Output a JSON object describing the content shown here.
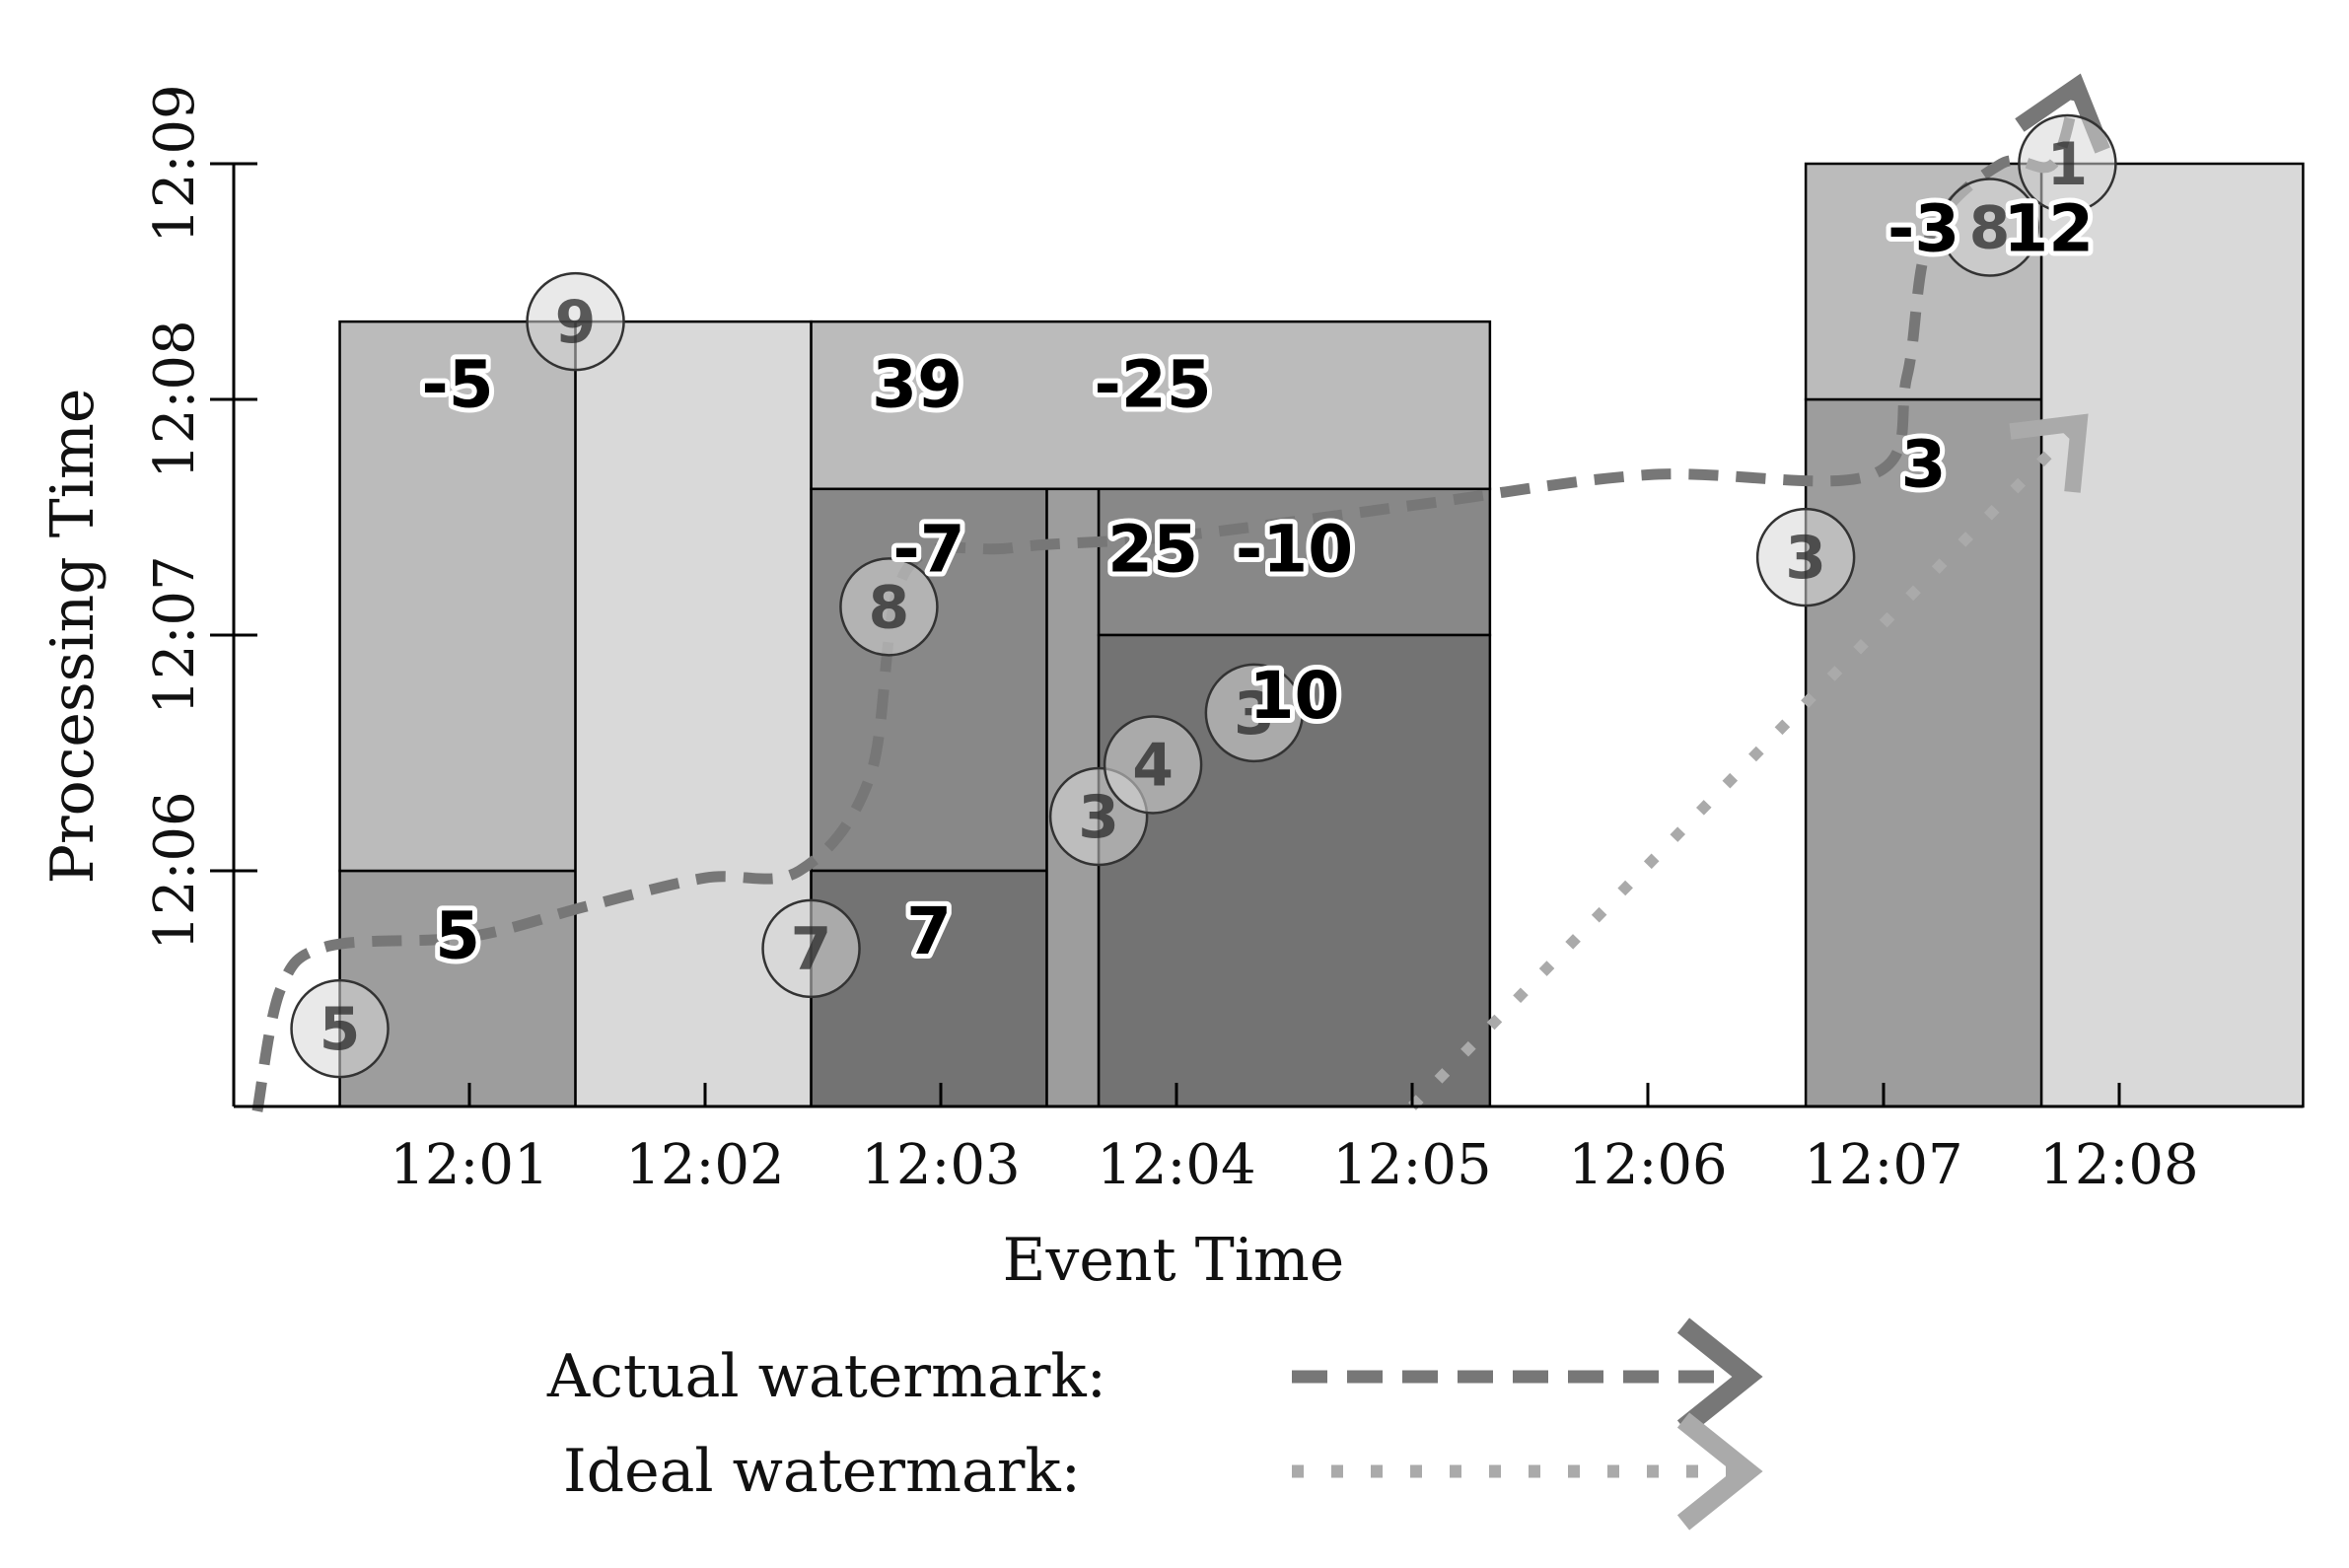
{
  "chart_data": {
    "type": "diagram-chart",
    "xlabel": "Event Time",
    "ylabel": "Processing Time",
    "x_ticks": [
      "12:01",
      "12:02",
      "12:03",
      "12:04",
      "12:05",
      "12:06",
      "12:07",
      "12:08"
    ],
    "y_ticks": [
      "12:06",
      "12:07",
      "12:08",
      "12:09"
    ],
    "xlim_minutes": [
      0,
      8.78
    ],
    "ylim_minutes": [
      5,
      9
    ],
    "colors": {
      "pane_light": "#d9d9d9",
      "pane_mid": "#bbbbbb",
      "pane_gray": "#9d9d9d",
      "pane_dark": "#888888",
      "pane_darkest": "#737373",
      "actual_watermark": "#777777",
      "ideal_watermark": "#aaaaaa"
    },
    "panes": [
      {
        "x0": 0.45,
        "x1": 1.45,
        "y0": 5,
        "y1": 6,
        "shade": "pane_gray"
      },
      {
        "x0": 0.45,
        "x1": 1.45,
        "y0": 6,
        "y1": 8.33,
        "shade": "pane_mid"
      },
      {
        "x0": 1.45,
        "x1": 2.45,
        "y0": 5,
        "y1": 8.33,
        "shade": "pane_light"
      },
      {
        "x0": 2.45,
        "x1": 5.33,
        "y0": 7.62,
        "y1": 8.33,
        "shade": "pane_mid"
      },
      {
        "x0": 2.45,
        "x1": 3.45,
        "y0": 6,
        "y1": 7.62,
        "shade": "pane_dark"
      },
      {
        "x0": 2.45,
        "x1": 3.45,
        "y0": 5,
        "y1": 6,
        "shade": "pane_darkest"
      },
      {
        "x0": 3.45,
        "x1": 3.67,
        "y0": 5,
        "y1": 7.62,
        "shade": "pane_gray"
      },
      {
        "x0": 3.67,
        "x1": 5.33,
        "y0": 7,
        "y1": 7.62,
        "shade": "pane_dark"
      },
      {
        "x0": 3.67,
        "x1": 5.33,
        "y0": 5,
        "y1": 7,
        "shade": "pane_darkest"
      },
      {
        "x0": 6.67,
        "x1": 7.67,
        "y0": 5,
        "y1": 8,
        "shade": "pane_gray"
      },
      {
        "x0": 6.67,
        "x1": 7.67,
        "y0": 8,
        "y1": 9,
        "shade": "pane_mid"
      },
      {
        "x0": 7.67,
        "x1": 8.78,
        "y0": 5,
        "y1": 9,
        "shade": "pane_light"
      }
    ],
    "events": [
      {
        "label": "5",
        "x": 0.45,
        "y": 5.33
      },
      {
        "label": "9",
        "x": 1.45,
        "y": 8.33
      },
      {
        "label": "7",
        "x": 2.45,
        "y": 5.67
      },
      {
        "label": "8",
        "x": 2.78,
        "y": 7.12
      },
      {
        "label": "3",
        "x": 3.67,
        "y": 6.23
      },
      {
        "label": "4",
        "x": 3.9,
        "y": 6.45
      },
      {
        "label": "3",
        "x": 4.33,
        "y": 6.67
      },
      {
        "label": "3",
        "x": 6.67,
        "y": 7.33
      },
      {
        "label": "8",
        "x": 7.45,
        "y": 8.73
      },
      {
        "label": "1",
        "x": 7.78,
        "y": 9.0
      }
    ],
    "pane_results": [
      {
        "label": "5",
        "x": 0.95,
        "y": 5.73
      },
      {
        "label": "-5",
        "x": 0.95,
        "y": 8.07
      },
      {
        "label": "7",
        "x": 2.95,
        "y": 5.75
      },
      {
        "label": "-7",
        "x": 2.95,
        "y": 7.37
      },
      {
        "label": "39",
        "x": 2.9,
        "y": 8.07
      },
      {
        "label": "-25",
        "x": 3.9,
        "y": 8.07
      },
      {
        "label": "25",
        "x": 3.9,
        "y": 7.37
      },
      {
        "label": "-10",
        "x": 4.5,
        "y": 7.37
      },
      {
        "label": "10",
        "x": 4.5,
        "y": 6.75
      },
      {
        "label": "3",
        "x": 7.17,
        "y": 7.73
      },
      {
        "label": "-3",
        "x": 7.17,
        "y": 8.73
      },
      {
        "label": "12",
        "x": 7.7,
        "y": 8.73
      }
    ],
    "actual_watermark": [
      [
        0.1,
        4.98
      ],
      [
        0.2,
        5.5
      ],
      [
        0.4,
        5.68
      ],
      [
        1.0,
        5.72
      ],
      [
        1.5,
        5.85
      ],
      [
        2.0,
        5.97
      ],
      [
        2.4,
        6.0
      ],
      [
        2.7,
        6.4
      ],
      [
        2.85,
        7.27
      ],
      [
        3.3,
        7.37
      ],
      [
        4.0,
        7.42
      ],
      [
        5.0,
        7.55
      ],
      [
        6.0,
        7.68
      ],
      [
        6.95,
        7.68
      ],
      [
        7.1,
        8.1
      ],
      [
        7.2,
        8.7
      ],
      [
        7.5,
        9.0
      ],
      [
        7.72,
        9.0
      ],
      [
        7.82,
        9.33
      ]
    ],
    "ideal_watermark": [
      [
        5.0,
        5.0
      ],
      [
        7.83,
        7.9
      ]
    ],
    "legend": {
      "placement": "bottom",
      "items": [
        {
          "label": "Actual watermark:",
          "style": "dashed"
        },
        {
          "label": "Ideal watermark:",
          "style": "dotted"
        }
      ]
    }
  }
}
